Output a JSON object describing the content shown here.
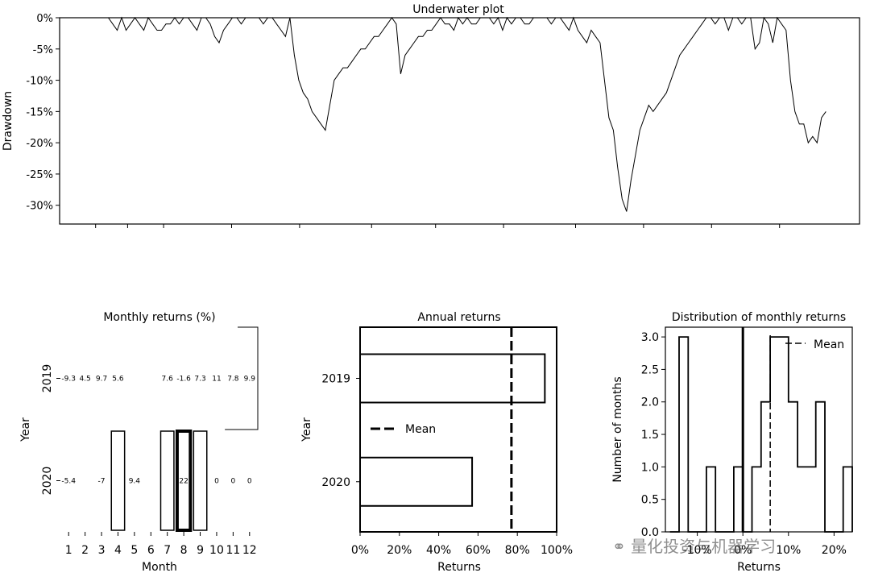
{
  "watermark": "量化投资与机器学习",
  "chart_data": [
    {
      "id": "underwater",
      "type": "area",
      "title": "Underwater plot",
      "xlabel": "",
      "ylabel": "Drawdown",
      "ylim": [
        -33,
        0
      ],
      "yticks": [
        "0%",
        "-5%",
        "-10%",
        "-15%",
        "-20%",
        "-25%",
        "-30%"
      ],
      "ytick_values": [
        0,
        -5,
        -10,
        -15,
        -20,
        -25,
        -30
      ],
      "grid": false,
      "series": [
        {
          "values": [
            0,
            0,
            0,
            0,
            0,
            0,
            0,
            0,
            0,
            0,
            0,
            0,
            -1,
            -2,
            0,
            -2,
            -1,
            0,
            -1,
            -2,
            0,
            -1,
            -2,
            -2,
            -1,
            -1,
            0,
            -1,
            0,
            0,
            -1,
            -2,
            0,
            0,
            -1,
            -3,
            -4,
            -2,
            -1,
            0,
            0,
            -1,
            0,
            0,
            0,
            0,
            -1,
            0,
            0,
            -1,
            -2,
            -3,
            0,
            -6,
            -10,
            -12,
            -13,
            -15,
            -16,
            -17,
            -18,
            -14,
            -10,
            -9,
            -8,
            -8,
            -7,
            -6,
            -5,
            -5,
            -4,
            -3,
            -3,
            -2,
            -1,
            0,
            -1,
            -9,
            -6,
            -5,
            -4,
            -3,
            -3,
            -2,
            -2,
            -1,
            0,
            -1,
            -1,
            -2,
            0,
            -1,
            0,
            -1,
            -1,
            0,
            0,
            0,
            -1,
            0,
            -2,
            0,
            -1,
            0,
            0,
            -1,
            -1,
            0,
            0,
            0,
            0,
            -1,
            0,
            0,
            -1,
            -2,
            0,
            -2,
            -3,
            -4,
            -2,
            -3,
            -4,
            -10,
            -16,
            -18,
            -24,
            -29,
            -31,
            -26,
            -22,
            -18,
            -16,
            -14,
            -15,
            -14,
            -13,
            -12,
            -10,
            -8,
            -6,
            -5,
            -4,
            -3,
            -2,
            -1,
            0,
            0,
            -1,
            0,
            0,
            -2,
            0,
            0,
            -1,
            0,
            0,
            -5,
            -4,
            0,
            -1,
            -4,
            0,
            -1,
            -2,
            -10,
            -15,
            -17,
            -17,
            -20,
            -19,
            -20,
            -16,
            -15
          ]
        }
      ]
    },
    {
      "id": "monthly",
      "type": "heatmap",
      "title": "Monthly returns (%)",
      "xlabel": "Month",
      "ylabel": "Year",
      "x": [
        "1",
        "2",
        "3",
        "4",
        "5",
        "6",
        "7",
        "8",
        "9",
        "10",
        "11",
        "12"
      ],
      "y": [
        "2019",
        "2020"
      ],
      "values": [
        [
          "-9.3",
          "4.5",
          "9.7",
          "5.6",
          "",
          "",
          "7.6",
          "-1.6",
          "7.3",
          "11",
          "7.8",
          "9.9"
        ],
        [
          "-5.4",
          "",
          "-7",
          "",
          "9.4",
          "",
          "",
          "22",
          "",
          "0",
          "0",
          "0"
        ]
      ]
    },
    {
      "id": "annual",
      "type": "bar",
      "title": "Annual returns",
      "xlabel": "Returns",
      "ylabel": "Year",
      "categories": [
        "2019",
        "2020"
      ],
      "values": [
        94,
        57
      ],
      "mean": 77,
      "legend": "Mean",
      "legend_position": "center-left",
      "xlim": [
        0,
        100
      ],
      "xticks": [
        "0%",
        "20%",
        "40%",
        "60%",
        "80%",
        "100%"
      ],
      "xtick_values": [
        0,
        20,
        40,
        60,
        80,
        100
      ]
    },
    {
      "id": "distribution",
      "type": "bar",
      "title": "Distribution of monthly returns",
      "xlabel": "Returns",
      "ylabel": "Number of months",
      "ylim": [
        0,
        3.15
      ],
      "yticks": [
        "0.0",
        "0.5",
        "1.0",
        "1.5",
        "2.0",
        "2.5",
        "3.0"
      ],
      "ytick_values": [
        0,
        0.5,
        1.0,
        1.5,
        2.0,
        2.5,
        3.0
      ],
      "xticks": [
        "-10%",
        "0%",
        "10%",
        "20%"
      ],
      "xtick_values": [
        -10,
        0,
        10,
        20
      ],
      "xlim": [
        -17,
        24
      ],
      "bins": [
        -16,
        -14,
        -12,
        -10,
        -8,
        -6,
        -4,
        -2,
        0,
        2,
        4,
        6,
        8,
        10,
        12,
        14,
        16,
        18,
        20,
        22,
        24
      ],
      "counts": [
        0,
        3,
        0,
        0,
        1,
        0,
        0,
        1,
        0,
        1,
        2,
        3,
        3,
        2,
        1,
        1,
        2,
        0,
        0,
        1
      ],
      "zero_line": 0,
      "mean": 6,
      "legend": "Mean",
      "legend_position": "top-right"
    }
  ]
}
